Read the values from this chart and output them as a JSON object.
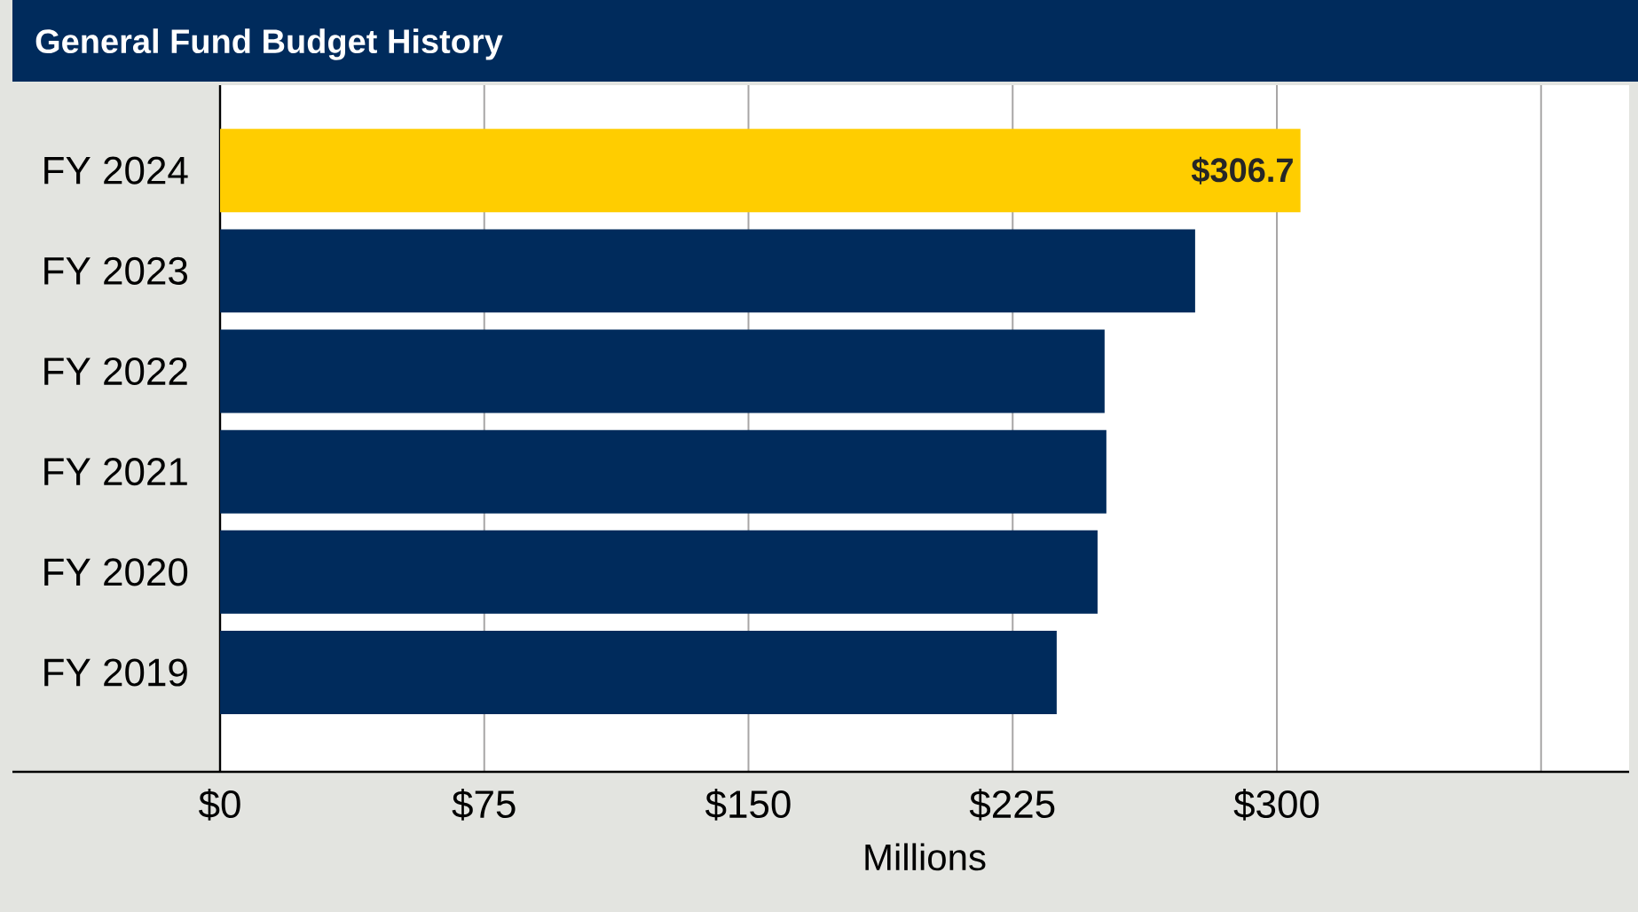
{
  "chart_data": {
    "type": "bar",
    "orientation": "horizontal",
    "title": "General Fund Budget History",
    "xlabel": "Millions",
    "categories": [
      "FY 2024",
      "FY 2023",
      "FY 2022",
      "FY 2021",
      "FY 2020",
      "FY 2019"
    ],
    "values": [
      306.7,
      276.8,
      251.1,
      251.6,
      249.1,
      237.5
    ],
    "colors": [
      "#ffcd00",
      "#002b5c",
      "#002b5c",
      "#002b5c",
      "#002b5c",
      "#002b5c"
    ],
    "value_labels": [
      "$306.7",
      null,
      null,
      null,
      null,
      null
    ],
    "xlim": [
      0,
      400
    ],
    "xticks": [
      {
        "value": 0,
        "label": "$0"
      },
      {
        "value": 75,
        "label": "$75"
      },
      {
        "value": 150,
        "label": "$150"
      },
      {
        "value": 225,
        "label": "$225"
      },
      {
        "value": 300,
        "label": "$300"
      },
      {
        "value": 375,
        "label": null
      }
    ],
    "grid": "x"
  }
}
